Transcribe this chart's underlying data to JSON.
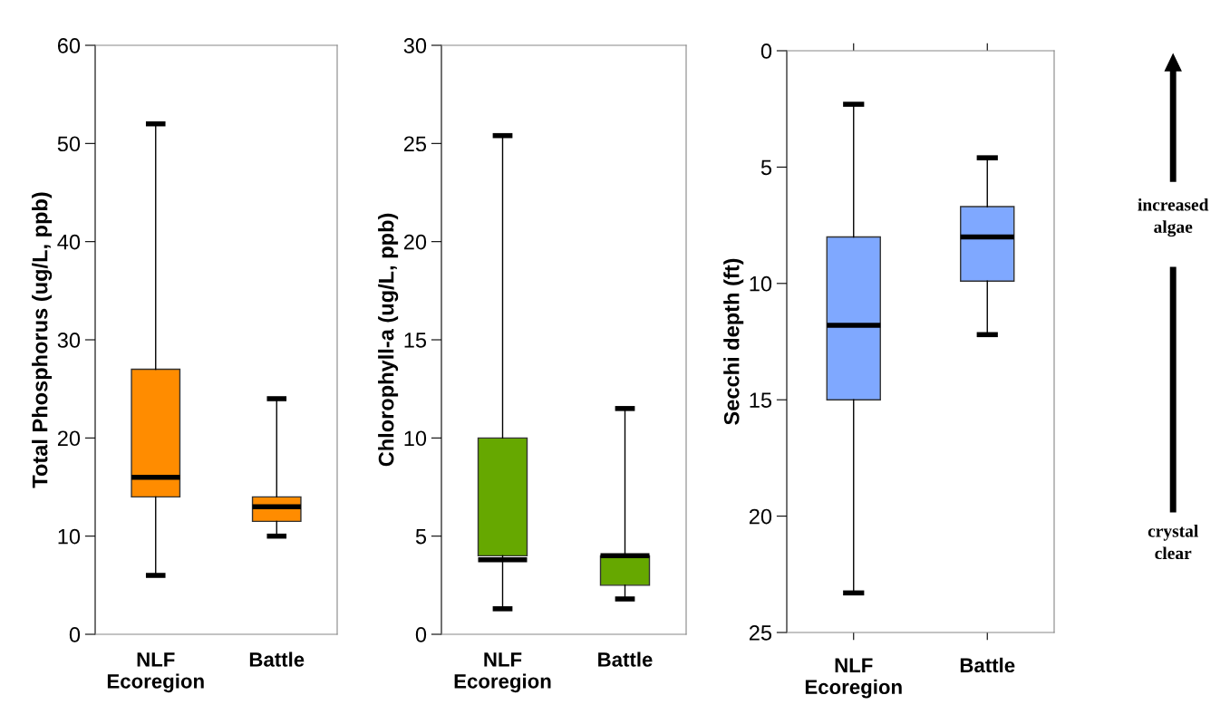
{
  "chart_data": [
    {
      "type": "box",
      "ylabel": "Total Phosphorus (ug/L, ppb)",
      "categories": [
        "NLF\nEcoregion",
        "Battle"
      ],
      "ylim": [
        0,
        60
      ],
      "yticks": [
        0,
        10,
        20,
        30,
        40,
        50,
        60
      ],
      "series": [
        {
          "color": "#ff8c00",
          "boxes": [
            {
              "low": 6,
              "q1": 14,
              "median": 16,
              "q3": 27,
              "high": 52
            },
            {
              "low": 10,
              "q1": 11.5,
              "median": 13,
              "q3": 14,
              "high": 24
            }
          ]
        }
      ]
    },
    {
      "type": "box",
      "ylabel": "Chlorophyll-a (ug/L, ppb)",
      "categories": [
        "NLF\nEcoregion",
        "Battle"
      ],
      "ylim": [
        0,
        30
      ],
      "yticks": [
        0,
        5,
        10,
        15,
        20,
        25,
        30
      ],
      "series": [
        {
          "color": "#66a800",
          "boxes": [
            {
              "low": 1.3,
              "q1": 4,
              "median": 3.8,
              "q3": 10,
              "high": 25.4
            },
            {
              "low": 1.8,
              "q1": 2.5,
              "median": 4,
              "q3": 4,
              "high": 11.5
            }
          ]
        }
      ]
    },
    {
      "type": "box",
      "ylabel": "Secchi depth (ft)",
      "categories": [
        "NLF\nEcoregion",
        "Battle"
      ],
      "ylim": [
        25,
        0
      ],
      "yticks": [
        0,
        5,
        10,
        15,
        20,
        25
      ],
      "series": [
        {
          "color": "#7fa8ff",
          "boxes": [
            {
              "low": 23.3,
              "q1": 15,
              "median": 11.8,
              "q3": 8,
              "high": 2.3
            },
            {
              "low": 12.2,
              "q1": 9.9,
              "median": 8,
              "q3": 6.7,
              "high": 4.6
            }
          ]
        }
      ]
    },
    {
      "type": "other",
      "annotations": [
        "increased\nalgae",
        "crystal\nclear"
      ]
    }
  ]
}
